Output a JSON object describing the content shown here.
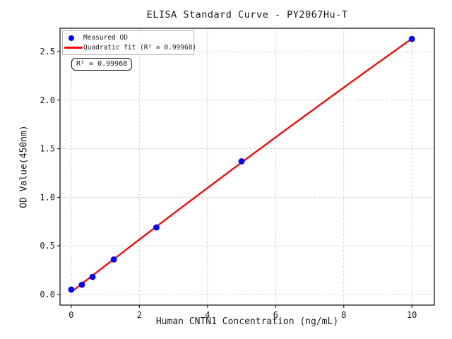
{
  "chart": {
    "title": "ELISA Standard Curve - PY2067Hu-T",
    "xlabel": "Human CNTN1 Concentration (ng/mL)",
    "ylabel": "OD Value(450nm)",
    "annotation": "R² = 0.99968",
    "legend": [
      {
        "label": "Measured OD",
        "marker": "dot",
        "color": "#0000ff"
      },
      {
        "label": "Quadratic fit (R² = 0.99968)",
        "marker": "line",
        "color": "#ff0000"
      }
    ],
    "colors": {
      "scatter": "#0000ff",
      "fit_line": "#ff0000",
      "grid": "#cccccc",
      "frame": "#1a1a1a"
    }
  },
  "chart_data": {
    "type": "scatter",
    "title": "ELISA Standard Curve - PY2067Hu-T",
    "xlabel": "Human CNTN1 Concentration (ng/mL)",
    "ylabel": "OD Value(450nm)",
    "x_ticks": [
      0,
      2,
      4,
      6,
      8,
      10
    ],
    "y_ticks": [
      0.0,
      0.5,
      1.0,
      1.5,
      2.0,
      2.5
    ],
    "xlim": [
      -0.33,
      10.66
    ],
    "ylim": [
      -0.11,
      2.74
    ],
    "grid": true,
    "grid_style": "dashed",
    "legend_position": "upper left",
    "series": [
      {
        "name": "Measured OD",
        "type": "scatter",
        "color": "#0000ff",
        "x": [
          0,
          0.3125,
          0.625,
          1.25,
          2.5,
          5,
          10
        ],
        "y": [
          0.05,
          0.1,
          0.18,
          0.36,
          0.69,
          1.37,
          2.63
        ]
      },
      {
        "name": "Quadratic fit (R² = 0.99968)",
        "type": "line",
        "fit": "quadratic",
        "color": "#ff0000",
        "x_range": [
          0,
          10
        ],
        "r_squared": 0.99968
      }
    ],
    "annotation": {
      "text": "R² = 0.99968"
    }
  }
}
